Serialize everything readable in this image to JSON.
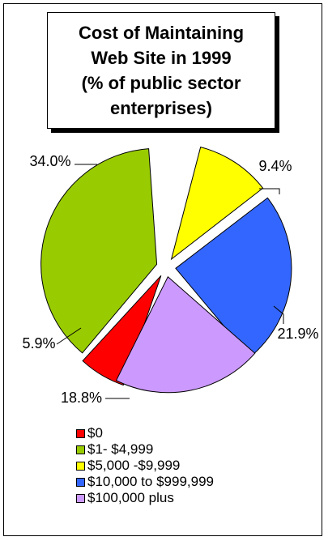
{
  "chart_data": {
    "type": "pie",
    "title": "Cost of Maintaining\nWeb Site in 1999\n(% of public sector\nenterprises)",
    "slices": [
      {
        "label": "$0",
        "value": 5.9,
        "data_label": "5.9%",
        "color": "#ff0000"
      },
      {
        "label": "$1- $4,999",
        "value": 34.0,
        "data_label": "34.0%",
        "color": "#99cc00"
      },
      {
        "label": "$5,000 -$9,999",
        "value": 9.4,
        "data_label": "9.4%",
        "color": "#ffff00"
      },
      {
        "label": "$10,000 to $999,999",
        "value": 21.9,
        "data_label": "21.9%",
        "color": "#3366ff"
      },
      {
        "label": "$100,000 plus",
        "value": 18.8,
        "data_label": "18.8%",
        "color": "#cc99ff"
      }
    ],
    "legend_position": "bottom"
  }
}
